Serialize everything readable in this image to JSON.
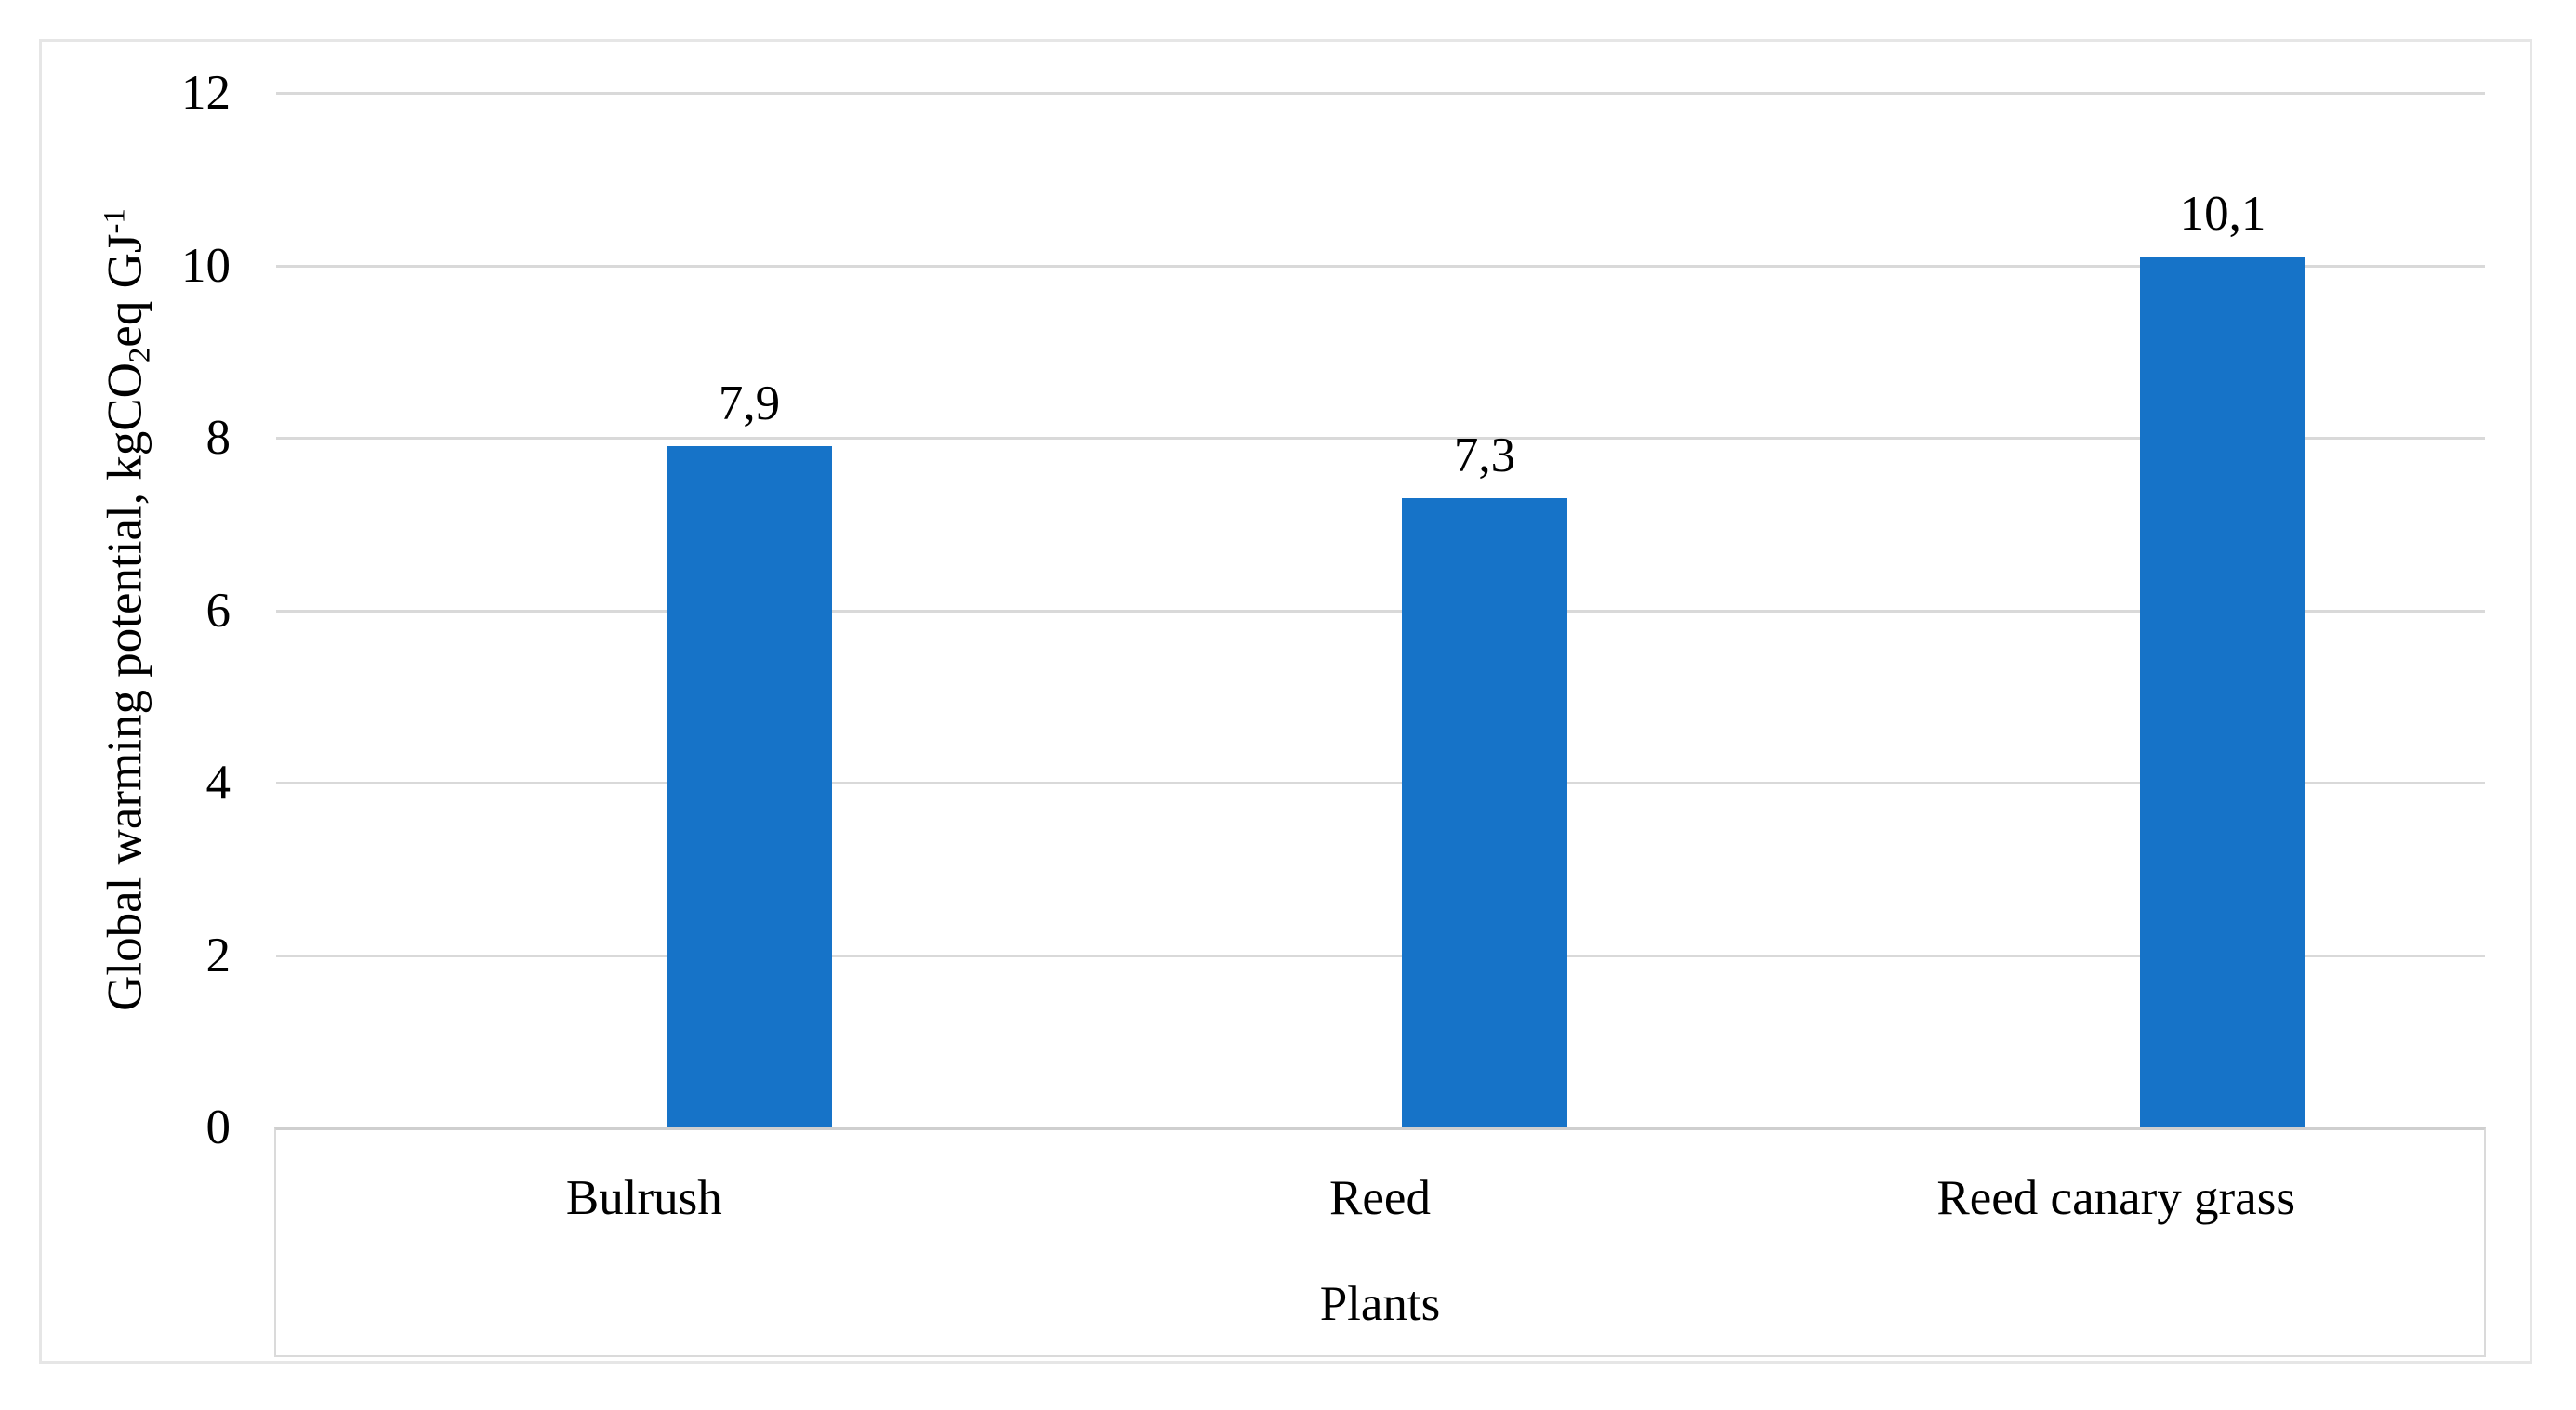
{
  "figure": {
    "background": "#FFFFFF",
    "border_color": "#E6E6E6"
  },
  "chart_data": {
    "type": "bar",
    "title": "",
    "categories": [
      "Bulrush",
      "Reed",
      "Reed canary grass"
    ],
    "values": [
      7.9,
      7.3,
      10.1
    ],
    "value_labels": [
      "7,9",
      "7,3",
      "10,1"
    ],
    "xlabel": "Plants",
    "ylabel": "Global warming potential, kgCO2eq GJ-1",
    "ylabel_parts": {
      "prefix": "Global warming potential, kgCO",
      "subscript": "2",
      "middle": "eq GJ",
      "superscript": "-1"
    },
    "ylim": [
      0,
      12
    ],
    "yticks": [
      0,
      2,
      4,
      6,
      8,
      10,
      12
    ],
    "ytick_labels": [
      "0",
      "2",
      "4",
      "6",
      "8",
      "10",
      "12"
    ],
    "grid": "horizontal",
    "gridline_color": "#D9D9D9",
    "legend": "none",
    "bar_color": "#1673C8",
    "text_color": "#000000"
  }
}
